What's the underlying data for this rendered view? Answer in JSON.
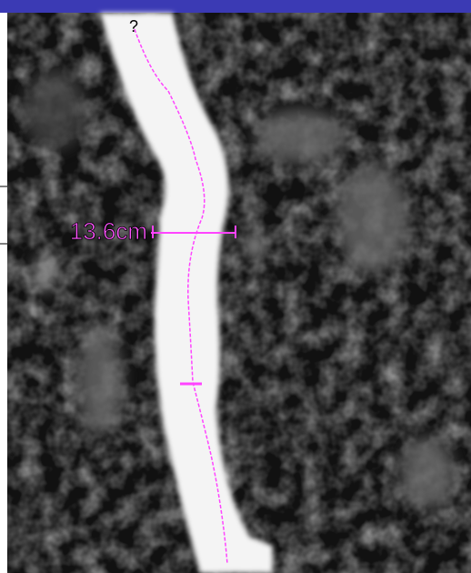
{
  "annotations": {
    "marker": "?",
    "measurement": "13.6cm"
  }
}
